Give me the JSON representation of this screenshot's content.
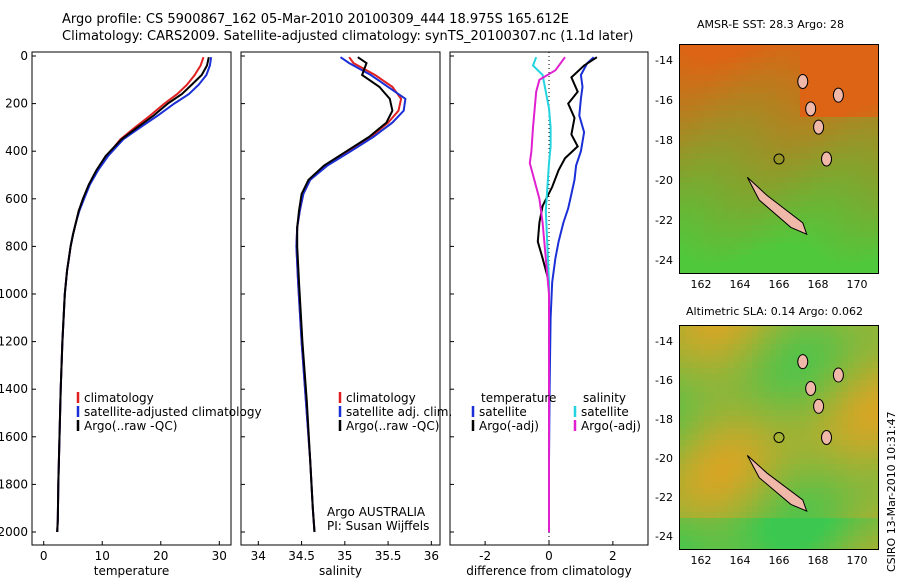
{
  "header": {
    "line1": "Argo profile: CS 5900867_162 05-Mar-2010 20100309_444 18.975S 165.612E",
    "line2": "Climatology: CARS2009. Satellite-adjusted climatology: synTS_20100307.nc (1.1d later)"
  },
  "colors": {
    "climatology": "#e02020",
    "satellite": "#1a2fd6",
    "argo": "#000000",
    "sat_salinity": "#22d4e0",
    "argo_sal_adj": "#e020d0"
  },
  "chart_data": [
    {
      "type": "line",
      "panel": "temperature",
      "xlabel": "temperature",
      "xticks": [
        "0",
        "10",
        "20",
        "30"
      ],
      "xlim": [
        -2,
        32
      ],
      "ylim": [
        0,
        2000
      ],
      "yticks": [
        "0",
        "200",
        "400",
        "600",
        "800",
        "1000",
        "1200",
        "1400",
        "1600",
        "1800",
        "2000"
      ],
      "legend": [
        "climatology",
        "satellite-adjusted climatology",
        "Argo(..raw -QC)"
      ],
      "series": [
        {
          "name": "climatology",
          "color_key": "climatology",
          "x": [
            27.3,
            26.8,
            25.8,
            24.5,
            22.8,
            20.6,
            18.2,
            15.6,
            13.1,
            10.8,
            9.2,
            7.8,
            6.8,
            6.0,
            5.5,
            5.0,
            4.6,
            4.3,
            4.0,
            3.6,
            3.2,
            2.9,
            2.7,
            2.5,
            2.4,
            2.3
          ],
          "y": [
            5,
            40,
            80,
            120,
            160,
            200,
            250,
            300,
            350,
            420,
            480,
            540,
            600,
            650,
            700,
            750,
            800,
            850,
            900,
            1000,
            1200,
            1400,
            1600,
            1800,
            1950,
            2000
          ]
        },
        {
          "name": "satellite-adjusted climatology",
          "color_key": "satellite",
          "x": [
            28.6,
            28.4,
            27.8,
            26.5,
            24.8,
            22.3,
            19.5,
            16.5,
            13.6,
            11.0,
            9.3,
            7.9,
            6.9,
            6.1,
            5.5,
            5.0,
            4.6,
            4.3,
            4.0,
            3.6,
            3.2,
            2.9,
            2.7,
            2.5,
            2.4,
            2.3
          ],
          "y": [
            5,
            40,
            80,
            120,
            160,
            200,
            250,
            300,
            350,
            420,
            480,
            540,
            600,
            650,
            700,
            750,
            800,
            850,
            900,
            1000,
            1200,
            1400,
            1600,
            1800,
            1950,
            2000
          ]
        },
        {
          "name": "Argo(..raw -QC)",
          "color_key": "argo",
          "x": [
            28.2,
            27.9,
            27.0,
            25.3,
            23.6,
            21.2,
            18.8,
            16.0,
            13.3,
            10.6,
            9.0,
            7.7,
            6.7,
            6.0,
            5.5,
            5.0,
            4.6,
            4.3,
            4.0,
            3.6,
            3.2,
            2.9,
            2.7,
            2.5,
            2.4,
            2.3
          ],
          "y": [
            5,
            40,
            80,
            120,
            160,
            200,
            250,
            300,
            350,
            420,
            480,
            540,
            600,
            650,
            700,
            750,
            800,
            850,
            900,
            1000,
            1200,
            1400,
            1600,
            1800,
            1950,
            2000
          ]
        }
      ]
    },
    {
      "type": "line",
      "panel": "salinity",
      "xlabel": "salinity",
      "xticks": [
        "34",
        "34.5",
        "35",
        "35.5",
        "36"
      ],
      "xlim": [
        33.8,
        36.1
      ],
      "ylim": [
        0,
        2000
      ],
      "legend": [
        "climatology",
        "satellite adj. clim.",
        "Argo(..raw -QC)"
      ],
      "annotation": [
        "Argo AUSTRALIA",
        "PI: Susan Wijffels"
      ],
      "series": [
        {
          "name": "climatology",
          "color_key": "climatology",
          "x": [
            35.05,
            35.1,
            35.35,
            35.55,
            35.65,
            35.62,
            35.5,
            35.3,
            35.05,
            34.78,
            34.6,
            34.52,
            34.48,
            34.45,
            34.44,
            34.46,
            34.5,
            34.55,
            34.6,
            34.63,
            34.65
          ],
          "y": [
            5,
            30,
            80,
            130,
            180,
            230,
            280,
            340,
            400,
            460,
            520,
            580,
            650,
            720,
            800,
            950,
            1200,
            1450,
            1700,
            1900,
            2000
          ]
        },
        {
          "name": "satellite adj. clim.",
          "color_key": "satellite",
          "x": [
            34.95,
            35.05,
            35.3,
            35.5,
            35.7,
            35.68,
            35.55,
            35.33,
            35.07,
            34.8,
            34.6,
            34.52,
            34.48,
            34.45,
            34.44,
            34.46,
            34.5,
            34.55,
            34.6,
            34.63,
            34.65
          ],
          "y": [
            5,
            30,
            80,
            130,
            180,
            230,
            280,
            340,
            400,
            460,
            520,
            580,
            650,
            720,
            800,
            950,
            1200,
            1450,
            1700,
            1900,
            2000
          ]
        },
        {
          "name": "Argo(..raw -QC)",
          "color_key": "argo",
          "x": [
            35.15,
            35.25,
            35.2,
            35.4,
            35.52,
            35.55,
            35.48,
            35.28,
            35.02,
            34.76,
            34.58,
            34.5,
            34.47,
            34.45,
            34.45,
            34.47,
            34.51,
            34.56,
            34.6,
            34.63,
            34.65
          ],
          "y": [
            5,
            30,
            80,
            130,
            180,
            230,
            280,
            340,
            400,
            460,
            520,
            580,
            650,
            720,
            800,
            950,
            1200,
            1450,
            1700,
            1900,
            2000
          ]
        }
      ]
    },
    {
      "type": "line",
      "panel": "difference",
      "xlabel": "difference from climatology",
      "xticks": [
        "-2",
        "0",
        "2"
      ],
      "xlim": [
        -3.1,
        3.1
      ],
      "ylim": [
        0,
        2000
      ],
      "legend_left_title": "temperature",
      "legend_right_title": "salinity",
      "legend": [
        "satellite",
        "Argo(-adj)",
        "satellite",
        "Argo(-adj)"
      ],
      "series": [
        {
          "name": "satellite",
          "color_key": "satellite",
          "x": [
            1.4,
            1.2,
            1.0,
            1.05,
            1.0,
            0.95,
            1.1,
            1.0,
            0.85,
            0.8,
            0.7,
            0.6,
            0.45,
            0.3,
            0.2,
            0.1,
            0.05,
            0.02,
            0.0,
            0.0
          ],
          "y": [
            5,
            30,
            80,
            130,
            180,
            250,
            320,
            400,
            460,
            520,
            580,
            640,
            700,
            780,
            850,
            950,
            1100,
            1400,
            1700,
            2000
          ]
        },
        {
          "name": "Argo(-adj)",
          "color_key": "argo",
          "x": [
            1.5,
            1.1,
            0.7,
            0.9,
            0.6,
            0.8,
            0.7,
            0.9,
            0.5,
            0.3,
            0.1,
            -0.2,
            -0.3,
            -0.35,
            -0.2,
            0.0,
            0.0,
            0.0,
            0.0
          ],
          "y": [
            5,
            40,
            90,
            150,
            200,
            260,
            330,
            380,
            430,
            480,
            550,
            630,
            700,
            780,
            850,
            950,
            1200,
            1600,
            2000
          ]
        },
        {
          "name": "satellite",
          "color_key": "sat_salinity",
          "x": [
            -0.4,
            -0.5,
            -0.2,
            -0.1,
            0.0,
            0.05,
            0.05,
            0.0,
            -0.05,
            -0.1,
            -0.05,
            0.0,
            0.0,
            0.0,
            0.0
          ],
          "y": [
            5,
            40,
            80,
            150,
            220,
            300,
            380,
            450,
            550,
            650,
            800,
            950,
            1200,
            1600,
            2000
          ]
        },
        {
          "name": "Argo(-adj)",
          "color_key": "argo_sal_adj",
          "x": [
            0.5,
            0.2,
            -0.3,
            -0.4,
            -0.5,
            -0.55,
            -0.6,
            -0.5,
            -0.3,
            -0.2,
            -0.1,
            0.0,
            0.0
          ],
          "y": [
            5,
            60,
            100,
            150,
            300,
            400,
            450,
            500,
            600,
            700,
            850,
            1000,
            2000
          ]
        }
      ]
    }
  ],
  "maps": [
    {
      "title": "AMSR-E SST: 28.3 Argo: 28",
      "yticks": [
        "-14",
        "-16",
        "-18",
        "-20",
        "-22",
        "-24"
      ],
      "xticks": [
        "162",
        "164",
        "166",
        "168",
        "170"
      ]
    },
    {
      "title": "Altimetric SLA: 0.14 Argo: 0.062",
      "yticks": [
        "-14",
        "-16",
        "-18",
        "-20",
        "-22",
        "-24"
      ],
      "xticks": [
        "162",
        "164",
        "166",
        "168",
        "170"
      ]
    }
  ],
  "stamp": "CSIRO 13-Mar-2010 10:31:47"
}
